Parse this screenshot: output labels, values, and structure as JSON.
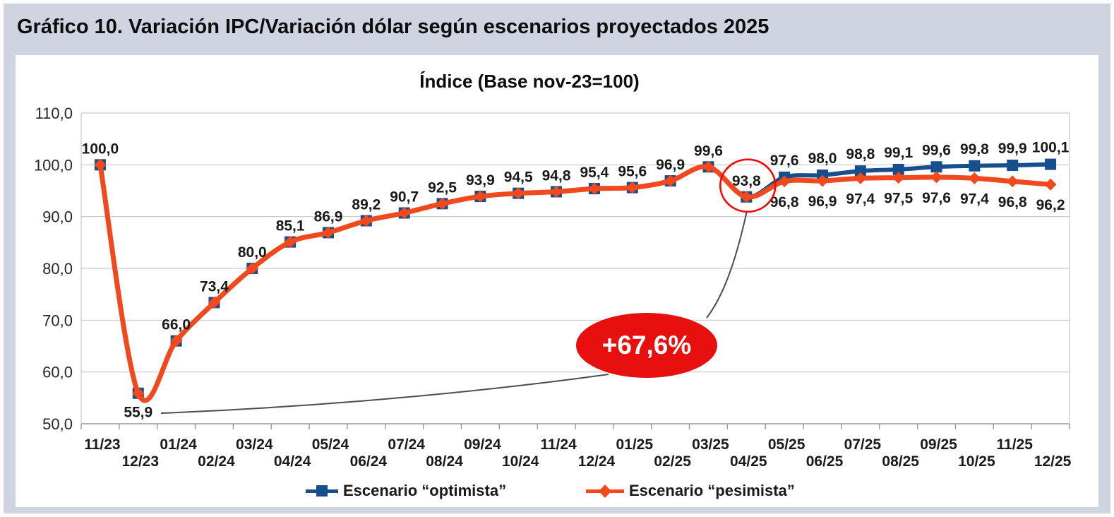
{
  "page": {
    "title": "Gráfico 10. Variación IPC/Variación dólar según escenarios proyectados 2025"
  },
  "chart_data": {
    "type": "line",
    "title": "Índice (Base nov-23=100)",
    "x_labels": [
      "11/23",
      "12/23",
      "01/24",
      "02/24",
      "03/24",
      "04/24",
      "05/24",
      "06/24",
      "07/24",
      "08/24",
      "09/24",
      "10/24",
      "11/24",
      "12/24",
      "01/25",
      "02/25",
      "03/25",
      "04/25",
      "05/25",
      "06/25",
      "07/25",
      "08/25",
      "09/25",
      "10/25",
      "11/25",
      "12/25"
    ],
    "ylim": [
      50,
      110
    ],
    "ytick_step": 10,
    "grid": "horizontal",
    "legend_position": "bottom",
    "decimal_separator": ",",
    "series": [
      {
        "name": "Escenario “optimista”",
        "color": "#174f8c",
        "marker": "square",
        "values": [
          100.0,
          55.9,
          66.0,
          73.4,
          80.0,
          85.1,
          86.9,
          89.2,
          90.7,
          92.5,
          93.9,
          94.5,
          94.8,
          95.4,
          95.6,
          96.9,
          99.6,
          93.8,
          97.6,
          98.0,
          98.8,
          99.1,
          99.6,
          99.8,
          99.9,
          100.1
        ]
      },
      {
        "name": "Escenario “pesimista”",
        "color": "#f1481d",
        "marker": "diamond",
        "values": [
          100.0,
          55.9,
          66.0,
          73.4,
          80.0,
          85.1,
          86.9,
          89.2,
          90.7,
          92.5,
          93.9,
          94.5,
          94.8,
          95.4,
          95.6,
          96.9,
          99.6,
          93.8,
          96.8,
          96.9,
          97.4,
          97.5,
          97.6,
          97.4,
          96.8,
          96.2
        ]
      }
    ],
    "annotations": {
      "growth_label": "+67,6%",
      "growth_color": "#e8100f",
      "growth_text_color": "#ffffff",
      "highlighted_value": "93,8",
      "highlighted_month": "04/25",
      "highlight_circle_color": "#ff0000"
    }
  }
}
